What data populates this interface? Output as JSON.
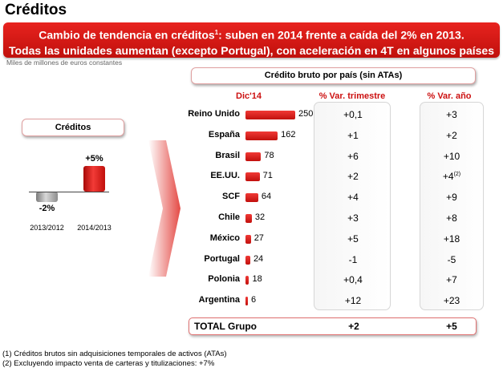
{
  "title": "Créditos",
  "banner": {
    "line1": "Cambio de tendencia en créditos",
    "line1_sup": "1",
    "line1_rest": ": suben en 2014 frente a caída del 2% en 2013.",
    "line2": "Todas las unidades aumentan (excepto Portugal), con aceleración en 4T en algunos países"
  },
  "unit_note": "Miles de millones de euros constantes",
  "right_panel": {
    "title": "Crédito bruto por país (sin ATAs)",
    "col_value": "Dic'14",
    "col_quarter": "% Var. trimestre",
    "col_year": "% Var. año"
  },
  "left_panel": {
    "title": "Créditos"
  },
  "total": {
    "label": "TOTAL Grupo",
    "quarter": "+2",
    "year": "+5"
  },
  "footnotes": [
    "(1) Créditos brutos sin adquisiciones temporales de activos (ATAs)",
    "(2) Excluyendo impacto venta de carteras y titulizaciones: +7%"
  ],
  "colors": {
    "accent": "#d8140f",
    "panel_border": "#d6d6d6"
  },
  "chart_data": [
    {
      "type": "bar",
      "title": "Créditos",
      "categories": [
        "2013/2012",
        "2014/2013"
      ],
      "values": [
        -2,
        5
      ],
      "labels": [
        "-2%",
        "+5%"
      ],
      "colors": [
        "#9a9a9a",
        "#d8140f"
      ],
      "ylim": [
        -3,
        6
      ]
    },
    {
      "type": "bar",
      "orientation": "horizontal",
      "title": "Crédito bruto por país (sin ATAs)",
      "categories": [
        "Reino Unido",
        "España",
        "Brasil",
        "EE.UU.",
        "SCF",
        "Chile",
        "México",
        "Portugal",
        "Polonia",
        "Argentina"
      ],
      "values": [
        250,
        162,
        78,
        71,
        64,
        32,
        27,
        24,
        18,
        6
      ],
      "var_trimestre": [
        "+0,1",
        "+1",
        "+6",
        "+2",
        "+4",
        "+3",
        "+5",
        "-1",
        "+0,4",
        "+12"
      ],
      "var_anio": [
        "+3",
        "+2",
        "+10",
        "+4",
        "+9",
        "+8",
        "+18",
        "-5",
        "+7",
        "+23"
      ],
      "var_anio_sup": [
        "",
        "",
        "",
        "(2)",
        "",
        "",
        "",
        "",
        "",
        ""
      ],
      "xlim": [
        0,
        250
      ]
    }
  ]
}
